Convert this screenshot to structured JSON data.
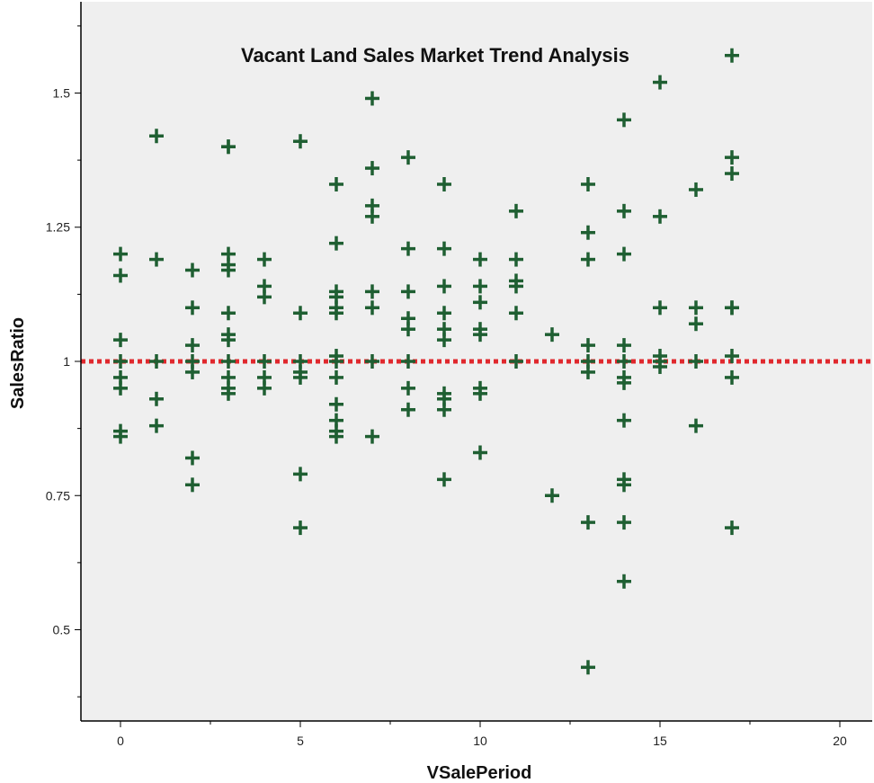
{
  "chart_data": {
    "type": "scatter",
    "title": "Vacant Land Sales Market Trend Analysis",
    "xlabel": "VSalePeriod",
    "ylabel": "SalesRatio",
    "xlim": [
      -1.1,
      20.9
    ],
    "ylim": [
      0.33,
      1.67
    ],
    "x_ticks": [
      0,
      5,
      10,
      15,
      20
    ],
    "x_tick_labels": [
      "0",
      "5",
      "10",
      "15",
      "20"
    ],
    "y_ticks": [
      0.5,
      0.75,
      1.0,
      1.25,
      1.5
    ],
    "y_tick_labels": [
      "0.5",
      "0.75",
      "1",
      "1.25",
      "1.5"
    ],
    "reference_line": {
      "y": 1.0,
      "style": "dotted",
      "color": "#e0282d"
    },
    "marker": "plus",
    "marker_color": "#1f5f32",
    "plot_background": "#efefef",
    "grid": false,
    "legend": "none",
    "series": [
      {
        "points": [
          [
            0,
            1.2
          ],
          [
            0,
            1.16
          ],
          [
            0,
            1.04
          ],
          [
            0,
            1.0
          ],
          [
            0,
            0.97
          ],
          [
            0,
            0.95
          ],
          [
            0,
            0.87
          ],
          [
            0,
            0.86
          ],
          [
            1,
            1.42
          ],
          [
            1,
            1.19
          ],
          [
            1,
            1.0
          ],
          [
            1,
            0.93
          ],
          [
            1,
            0.88
          ],
          [
            2,
            1.17
          ],
          [
            2,
            1.1
          ],
          [
            2,
            1.03
          ],
          [
            2,
            1.0
          ],
          [
            2,
            0.98
          ],
          [
            2,
            0.82
          ],
          [
            2,
            0.77
          ],
          [
            3,
            1.4
          ],
          [
            3,
            1.4
          ],
          [
            3,
            1.2
          ],
          [
            3,
            1.18
          ],
          [
            3,
            1.17
          ],
          [
            3,
            1.09
          ],
          [
            3,
            1.05
          ],
          [
            3,
            1.04
          ],
          [
            3,
            1.0
          ],
          [
            3,
            0.97
          ],
          [
            3,
            0.95
          ],
          [
            3,
            0.94
          ],
          [
            4,
            1.19
          ],
          [
            4,
            1.14
          ],
          [
            4,
            1.12
          ],
          [
            4,
            1.0
          ],
          [
            4,
            0.97
          ],
          [
            4,
            0.95
          ],
          [
            5,
            1.41
          ],
          [
            5,
            1.09
          ],
          [
            5,
            1.0
          ],
          [
            5,
            0.98
          ],
          [
            5,
            0.97
          ],
          [
            5,
            0.79
          ],
          [
            5,
            0.69
          ],
          [
            6,
            1.33
          ],
          [
            6,
            1.22
          ],
          [
            6,
            1.13
          ],
          [
            6,
            1.12
          ],
          [
            6,
            1.1
          ],
          [
            6,
            1.09
          ],
          [
            6,
            1.01
          ],
          [
            6,
            1.0
          ],
          [
            6,
            0.97
          ],
          [
            6,
            0.92
          ],
          [
            6,
            0.89
          ],
          [
            6,
            0.87
          ],
          [
            6,
            0.86
          ],
          [
            7,
            1.49
          ],
          [
            7,
            1.36
          ],
          [
            7,
            1.29
          ],
          [
            7,
            1.27
          ],
          [
            7,
            1.13
          ],
          [
            7,
            1.1
          ],
          [
            7,
            1.0
          ],
          [
            7,
            0.86
          ],
          [
            8,
            1.38
          ],
          [
            8,
            1.21
          ],
          [
            8,
            1.13
          ],
          [
            8,
            1.08
          ],
          [
            8,
            1.06
          ],
          [
            8,
            1.0
          ],
          [
            8,
            0.95
          ],
          [
            8,
            0.91
          ],
          [
            9,
            1.33
          ],
          [
            9,
            1.21
          ],
          [
            9,
            1.14
          ],
          [
            9,
            1.09
          ],
          [
            9,
            1.06
          ],
          [
            9,
            1.04
          ],
          [
            9,
            0.94
          ],
          [
            9,
            0.93
          ],
          [
            9,
            0.91
          ],
          [
            9,
            0.78
          ],
          [
            10,
            1.19
          ],
          [
            10,
            1.14
          ],
          [
            10,
            1.11
          ],
          [
            10,
            1.06
          ],
          [
            10,
            1.05
          ],
          [
            10,
            0.95
          ],
          [
            10,
            0.94
          ],
          [
            10,
            0.83
          ],
          [
            11,
            1.28
          ],
          [
            11,
            1.19
          ],
          [
            11,
            1.15
          ],
          [
            11,
            1.14
          ],
          [
            11,
            1.09
          ],
          [
            11,
            1.0
          ],
          [
            12,
            1.05
          ],
          [
            12,
            0.75
          ],
          [
            13,
            1.33
          ],
          [
            13,
            1.24
          ],
          [
            13,
            1.19
          ],
          [
            13,
            1.03
          ],
          [
            13,
            1.0
          ],
          [
            13,
            0.98
          ],
          [
            13,
            0.7
          ],
          [
            13,
            0.43
          ],
          [
            14,
            1.45
          ],
          [
            14,
            1.28
          ],
          [
            14,
            1.2
          ],
          [
            14,
            1.03
          ],
          [
            14,
            1.0
          ],
          [
            14,
            0.97
          ],
          [
            14,
            0.96
          ],
          [
            14,
            0.89
          ],
          [
            14,
            0.78
          ],
          [
            14,
            0.77
          ],
          [
            14,
            0.7
          ],
          [
            14,
            0.59
          ],
          [
            15,
            1.52
          ],
          [
            15,
            1.27
          ],
          [
            15,
            1.1
          ],
          [
            15,
            1.01
          ],
          [
            15,
            1.0
          ],
          [
            15,
            0.99
          ],
          [
            16,
            1.32
          ],
          [
            16,
            1.1
          ],
          [
            16,
            1.07
          ],
          [
            16,
            1.0
          ],
          [
            16,
            0.88
          ],
          [
            17,
            1.57
          ],
          [
            17,
            1.38
          ],
          [
            17,
            1.35
          ],
          [
            17,
            1.1
          ],
          [
            17,
            1.1
          ],
          [
            17,
            1.01
          ],
          [
            17,
            0.97
          ],
          [
            17,
            0.69
          ]
        ]
      }
    ]
  }
}
